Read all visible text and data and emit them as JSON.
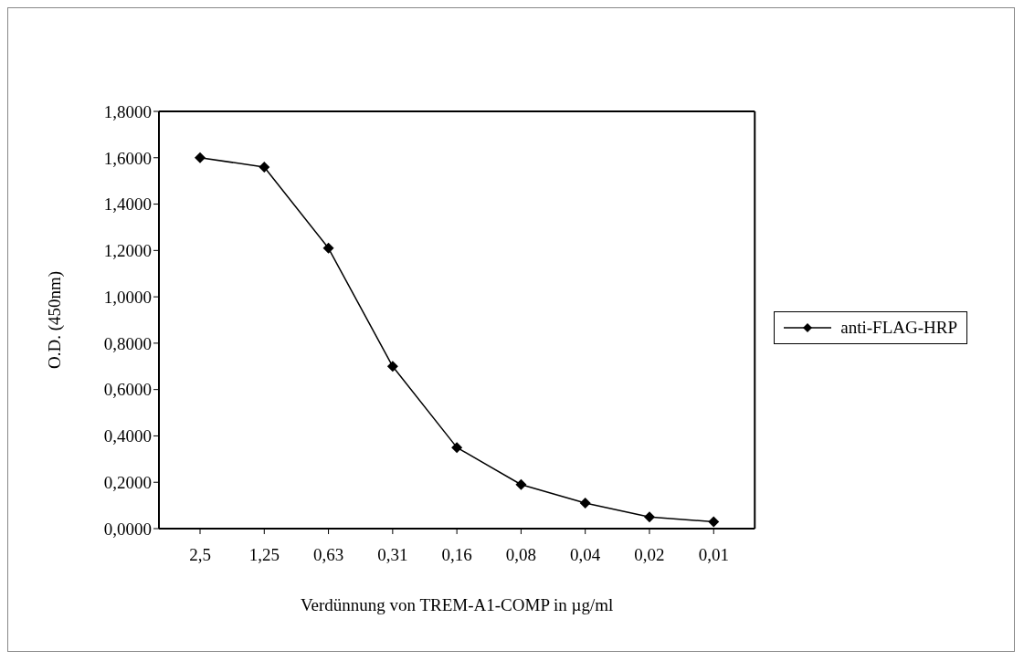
{
  "chart_data": {
    "type": "line",
    "xlabel": "Verdünnung von TREM-A1-COMP in  µg/ml",
    "ylabel": "O.D. (450nm)",
    "categories": [
      "2,5",
      "1,25",
      "0,63",
      "0,31",
      "0,16",
      "0,08",
      "0,04",
      "0,02",
      "0,01"
    ],
    "series": [
      {
        "name": "anti-FLAG-HRP",
        "color": "#000000",
        "values": [
          1.6,
          1.56,
          1.21,
          0.7,
          0.35,
          0.19,
          0.11,
          0.05,
          0.03
        ]
      }
    ],
    "ylim": [
      0,
      1.8
    ],
    "yticks": [
      {
        "value": 0,
        "label": "0,0000"
      },
      {
        "value": 0.2,
        "label": "0,2000"
      },
      {
        "value": 0.4,
        "label": "0,4000"
      },
      {
        "value": 0.6,
        "label": "0,6000"
      },
      {
        "value": 0.8,
        "label": "0,8000"
      },
      {
        "value": 1.0,
        "label": "1,0000"
      },
      {
        "value": 1.2,
        "label": "1,2000"
      },
      {
        "value": 1.4,
        "label": "1,4000"
      },
      {
        "value": 1.6,
        "label": "1,6000"
      },
      {
        "value": 1.8,
        "label": "1,8000"
      }
    ],
    "grid": false,
    "legend": "right",
    "marker": "diamond",
    "line_style": "solid"
  }
}
